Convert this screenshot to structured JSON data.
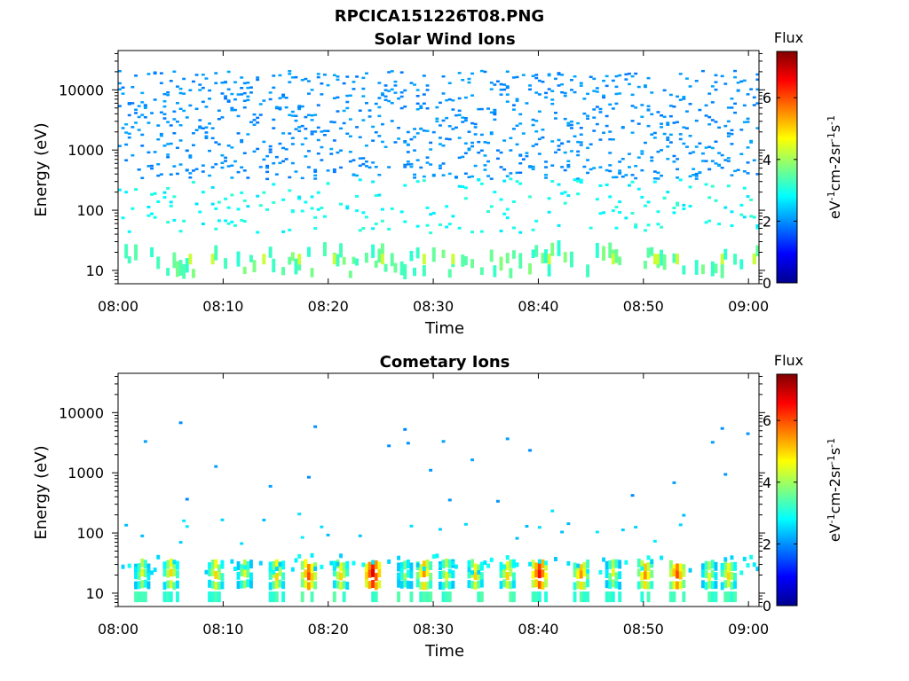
{
  "figure": {
    "title": "RPCICA151226T08.PNG"
  },
  "chart_data": [
    {
      "type": "heatmap",
      "title": "Solar Wind Ions",
      "xlabel": "Time",
      "ylabel": "Energy (eV)",
      "x_ticks": [
        "08:00",
        "08:10",
        "08:20",
        "08:30",
        "08:40",
        "08:50",
        "09:00"
      ],
      "xlim": [
        "08:00",
        "09:01"
      ],
      "y_ticks": [
        "10",
        "100",
        "1000",
        "10000"
      ],
      "y_scale": "log",
      "ylim": [
        6,
        45000
      ],
      "colorbar": {
        "title": "Flux",
        "label": "eV-1cm-2sr-1s-1",
        "ticks": [
          "0",
          "2",
          "4",
          "6"
        ],
        "range": [
          0,
          7.5
        ],
        "colormap": "jet"
      },
      "features": {
        "description_values": "Sparse scattered flux across 08:00-09:01; values about 2 (blue) between 300 and 20000 eV, about 3 (cyan) between 50 and 300 eV, about 3.5 (green-cyan) below 20 eV, isolated maxima about 4.5 near 08:40 below 20 eV"
      }
    },
    {
      "type": "heatmap",
      "title": "Cometary Ions",
      "xlabel": "Time",
      "ylabel": "Energy (eV)",
      "x_ticks": [
        "08:00",
        "08:10",
        "08:20",
        "08:30",
        "08:40",
        "08:50",
        "09:00"
      ],
      "xlim": [
        "08:00",
        "09:01"
      ],
      "y_ticks": [
        "10",
        "100",
        "1000",
        "10000"
      ],
      "y_scale": "log",
      "ylim": [
        6,
        45000
      ],
      "colorbar": {
        "title": "Flux",
        "label": "eV-1cm-2sr-1s-1",
        "ticks": [
          "0",
          "2",
          "4",
          "6"
        ],
        "range": [
          0,
          7.5
        ],
        "colormap": "jet"
      },
      "bursts": [
        {
          "t": "08:02",
          "peak": 4.5
        },
        {
          "t": "08:05",
          "peak": 5.0
        },
        {
          "t": "08:09",
          "peak": 5.0
        },
        {
          "t": "08:12",
          "peak": 4.5
        },
        {
          "t": "08:15",
          "peak": 5.0
        },
        {
          "t": "08:18",
          "peak": 6.0
        },
        {
          "t": "08:21",
          "peak": 5.0
        },
        {
          "t": "08:24",
          "peak": 6.8
        },
        {
          "t": "08:27",
          "peak": 4.0
        },
        {
          "t": "08:29",
          "peak": 5.5
        },
        {
          "t": "08:31",
          "peak": 4.5
        },
        {
          "t": "08:34",
          "peak": 5.0
        },
        {
          "t": "08:37",
          "peak": 5.0
        },
        {
          "t": "08:40",
          "peak": 6.5
        },
        {
          "t": "08:44",
          "peak": 5.5
        },
        {
          "t": "08:47",
          "peak": 4.5
        },
        {
          "t": "08:50",
          "peak": 5.5
        },
        {
          "t": "08:53",
          "peak": 6.0
        },
        {
          "t": "08:56",
          "peak": 4.5
        },
        {
          "t": "08:58",
          "peak": 5.0
        }
      ]
    }
  ]
}
